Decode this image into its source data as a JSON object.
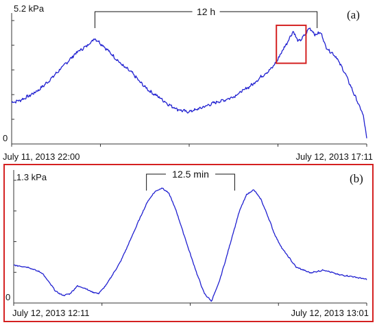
{
  "colors": {
    "series": "#1f1fd0",
    "highlight": "#d42020",
    "axis": "#333333",
    "text": "#111111"
  },
  "chart_data": [
    {
      "type": "line",
      "panel_label": "(a)",
      "ylabel_top": "5.2 kPa",
      "y_zero_label": "0",
      "ylim": [
        0,
        5.2
      ],
      "x_unit": "hours after July 11, 2013 22:00",
      "xlim": [
        0,
        19.18
      ],
      "x_tick_labels": [
        {
          "x": 0,
          "text": "July 11, 2013  22:00"
        },
        {
          "x": 19.18,
          "text": "July 12, 2013  17:11"
        }
      ],
      "annotation": {
        "text": "12 h",
        "x_start": 4.5,
        "x_end": 16.5
      },
      "highlight_box": {
        "x_start": 14.3,
        "x_end": 15.9,
        "y_low": 3.4,
        "y_high": 5.0
      },
      "series": [
        {
          "x": [
            0,
            0.5,
            1,
            1.5,
            2,
            2.5,
            3,
            3.5,
            4,
            4.5,
            5,
            5.5,
            6,
            6.5,
            7,
            7.5,
            8,
            8.5,
            9,
            9.5,
            10,
            10.5,
            11,
            11.5,
            12,
            12.5,
            13,
            13.5,
            14,
            14.3,
            14.6,
            14.9,
            15.2,
            15.5,
            15.8,
            16.1,
            16.4,
            16.7,
            17,
            17.5,
            18,
            18.5,
            19,
            19.18
          ],
          "y": [
            1.75,
            1.85,
            2.05,
            2.3,
            2.65,
            3.05,
            3.45,
            3.85,
            4.1,
            4.45,
            4.1,
            3.7,
            3.3,
            3.0,
            2.55,
            2.2,
            1.95,
            1.65,
            1.45,
            1.35,
            1.45,
            1.6,
            1.75,
            1.85,
            2.0,
            2.25,
            2.5,
            2.85,
            3.15,
            3.45,
            3.9,
            4.3,
            4.75,
            4.3,
            4.55,
            4.9,
            4.6,
            4.7,
            4.05,
            3.7,
            3.0,
            2.1,
            1.2,
            0.2
          ]
        }
      ]
    },
    {
      "type": "line",
      "panel_label": "(b)",
      "ylabel_top": "1.3 kPa",
      "y_zero_label": "0",
      "ylim": [
        0,
        1.3
      ],
      "x_unit": "minutes after July 12, 2013 12:11",
      "xlim": [
        0,
        50
      ],
      "x_tick_labels": [
        {
          "x": 0,
          "text": "July 12, 2013   12:11"
        },
        {
          "x": 50,
          "text": "July 12, 2013   13:01"
        }
      ],
      "annotation": {
        "text": "12.5 min",
        "x_start": 18.8,
        "x_end": 31.3
      },
      "series": [
        {
          "x": [
            0,
            2,
            4,
            5,
            6,
            7,
            8,
            9,
            10,
            11,
            12,
            13,
            14,
            15,
            16,
            17,
            18,
            19,
            20,
            21,
            22,
            23,
            24,
            25,
            26,
            27,
            28,
            29,
            30,
            31,
            32,
            33,
            34,
            35,
            36,
            37,
            38,
            39,
            40,
            42,
            44,
            46,
            48,
            50
          ],
          "y": [
            0.4,
            0.38,
            0.32,
            0.22,
            0.12,
            0.08,
            0.1,
            0.18,
            0.16,
            0.12,
            0.1,
            0.18,
            0.3,
            0.42,
            0.58,
            0.75,
            0.92,
            1.08,
            1.18,
            1.22,
            1.16,
            0.98,
            0.75,
            0.52,
            0.3,
            0.1,
            0.02,
            0.2,
            0.45,
            0.72,
            0.98,
            1.15,
            1.2,
            1.1,
            0.92,
            0.72,
            0.58,
            0.48,
            0.38,
            0.32,
            0.35,
            0.3,
            0.28,
            0.25
          ]
        }
      ]
    }
  ]
}
